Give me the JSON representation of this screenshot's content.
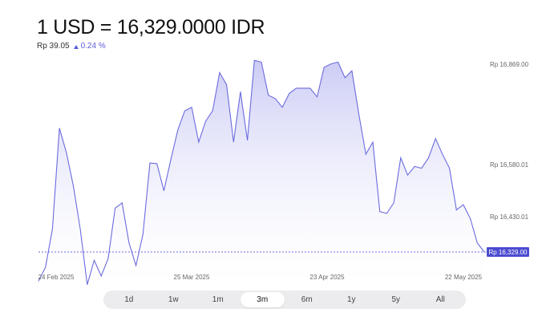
{
  "header": {
    "title": "1 USD = 16,329.0000 IDR",
    "change_value": "Rp 39.05",
    "change_percent": "0.24 %",
    "change_direction": "up"
  },
  "range_selector": {
    "options": [
      "1d",
      "1w",
      "1m",
      "3m",
      "6m",
      "1y",
      "5y",
      "All"
    ],
    "selected": "3m"
  },
  "colors": {
    "line": "#6b6bde",
    "fill_top": "#c9c9f5",
    "fill_bottom": "#ffffff",
    "current_tag_bg": "#4b4bd0",
    "current_tag_text": "#ffffff"
  },
  "chart_data": {
    "type": "area",
    "x_tick_labels": [
      "24 Feb 2025",
      "25 Mar 2025",
      "23 Apr 2025",
      "22 May 2025"
    ],
    "y_tick_labels": [
      "Rp 16,869.00",
      "Rp 16,580.01",
      "Rp 16,430.01"
    ],
    "y_ticks": [
      16869.0,
      16580.01,
      16430.01
    ],
    "current_label": "Rp 16,329.00",
    "current_value": 16329.0,
    "ylim": [
      16240,
      16900
    ],
    "series": [
      {
        "values": [
          16245,
          16285,
          16395,
          16685,
          16615,
          16520,
          16395,
          16235,
          16305,
          16260,
          16310,
          16455,
          16470,
          16355,
          16290,
          16380,
          16585,
          16583,
          16505,
          16595,
          16680,
          16735,
          16745,
          16645,
          16705,
          16735,
          16845,
          16810,
          16645,
          16790,
          16650,
          16880,
          16875,
          16780,
          16770,
          16745,
          16785,
          16800,
          16800,
          16800,
          16775,
          16860,
          16870,
          16875,
          16830,
          16850,
          16725,
          16610,
          16645,
          16445,
          16440,
          16470,
          16600,
          16550,
          16575,
          16570,
          16600,
          16655,
          16610,
          16570,
          16450,
          16465,
          16425,
          16355,
          16329
        ]
      }
    ]
  }
}
